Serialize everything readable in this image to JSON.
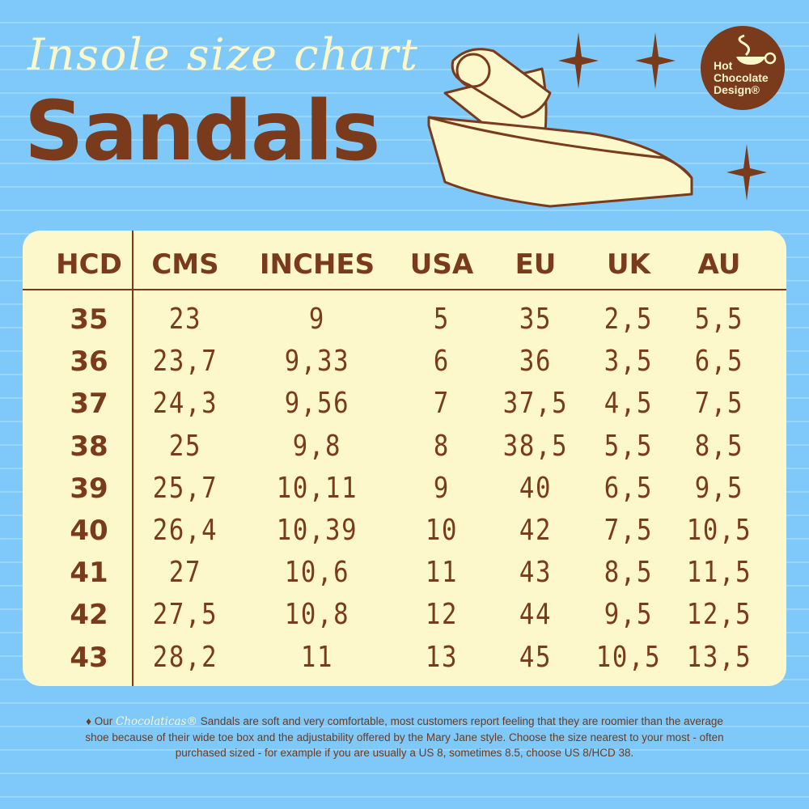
{
  "title": {
    "script": "Insole size chart",
    "main": "Sandals"
  },
  "logo": {
    "text": "Hot Chocolate Design®"
  },
  "colors": {
    "background": "#7ec9f9",
    "brown": "#7a3a1c",
    "cream": "#fdf7cc"
  },
  "table": {
    "headers": [
      "HCD",
      "CMS",
      "INCHES",
      "USA",
      "EU",
      "UK",
      "AU"
    ],
    "rows": [
      [
        "35",
        "23",
        "9",
        "5",
        "35",
        "2,5",
        "5,5"
      ],
      [
        "36",
        "23,7",
        "9,33",
        "6",
        "36",
        "3,5",
        "6,5"
      ],
      [
        "37",
        "24,3",
        "9,56",
        "7",
        "37,5",
        "4,5",
        "7,5"
      ],
      [
        "38",
        "25",
        "9,8",
        "8",
        "38,5",
        "5,5",
        "8,5"
      ],
      [
        "39",
        "25,7",
        "10,11",
        "9",
        "40",
        "6,5",
        "9,5"
      ],
      [
        "40",
        "26,4",
        "10,39",
        "10",
        "42",
        "7,5",
        "10,5"
      ],
      [
        "41",
        "27",
        "10,6",
        "11",
        "43",
        "8,5",
        "11,5"
      ],
      [
        "42",
        "27,5",
        "10,8",
        "12",
        "44",
        "9,5",
        "12,5"
      ],
      [
        "43",
        "28,2",
        "11",
        "13",
        "45",
        "10,5",
        "13,5"
      ]
    ]
  },
  "note": {
    "prefix": "♦ Our",
    "brand": "Chocolaticas®",
    "text": "Sandals are soft and very comfortable, most customers report feeling that they are roomier than the average shoe because of their wide toe box and the adjustability offered by the Mary Jane style. Choose the size nearest to your most - often  purchased sized - for example if you are usually a US 8, sometimes 8.5, choose US 8/HCD 38."
  }
}
